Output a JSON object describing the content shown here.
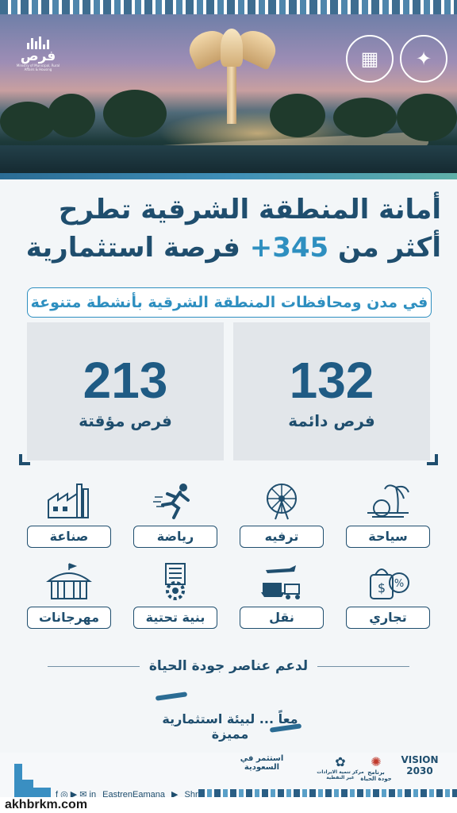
{
  "header": {
    "left_logo_word": "فرص",
    "left_logo_small": "Ministry of Municipal, Rural Affairs & Housing"
  },
  "headline": {
    "line1": "أمانة المنطقة الشرقية تطرح",
    "line2_prefix": "أكثر من",
    "line2_number": "+345",
    "line2_suffix": "فرصة استثمارية"
  },
  "subtitle": "في مدن ومحافظات المنطقة الشرقية بأنشطة متنوعة",
  "stats": [
    {
      "value": "132",
      "label": "فرص دائمة"
    },
    {
      "value": "213",
      "label": "فرص مؤقتة"
    }
  ],
  "categories": [
    {
      "label": "سياحة",
      "icon": "beach-icon"
    },
    {
      "label": "ترفيه",
      "icon": "ferris-wheel-icon"
    },
    {
      "label": "رياضة",
      "icon": "runner-icon"
    },
    {
      "label": "صناعة",
      "icon": "factory-icon"
    },
    {
      "label": "تجاري",
      "icon": "commerce-icon"
    },
    {
      "label": "نقل",
      "icon": "transport-icon"
    },
    {
      "label": "بنية تحتية",
      "icon": "infrastructure-icon"
    },
    {
      "label": "مهرجانات",
      "icon": "tent-icon"
    }
  ],
  "tagline": "لدعم عناصر جودة الحياة",
  "together": "معاً ... لبيئة استثمارية مميزة",
  "footer": {
    "social_handle": "EastrenEamana",
    "social_handle2": "Shrgayah",
    "partner1": "استثمر في السعودية",
    "partner2": "مركز تنمية الايرادات غير النفطية",
    "partner3": "برنامج جودة الحياة",
    "partner4": "VISION 2030"
  },
  "watermark": "akhbrkm.com",
  "colors": {
    "primary": "#1f4e6e",
    "accent": "#2e8fc0",
    "card": "#e2e6ea"
  }
}
